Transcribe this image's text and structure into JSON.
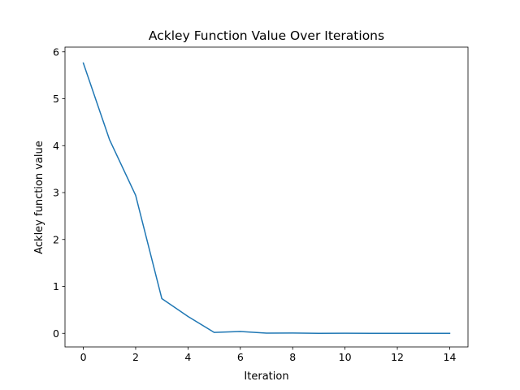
{
  "chart_data": {
    "type": "line",
    "title": "Ackley Function Value Over Iterations",
    "xlabel": "Iteration",
    "ylabel": "Ackley function value",
    "xlim": [
      -0.7,
      14.7
    ],
    "ylim": [
      -0.29,
      6.1
    ],
    "x_ticks": [
      0,
      2,
      4,
      6,
      8,
      10,
      12,
      14
    ],
    "y_ticks": [
      0,
      1,
      2,
      3,
      4,
      5,
      6
    ],
    "grid": false,
    "legend": "none",
    "series": [
      {
        "color": "#1f77b4",
        "x": [
          0,
          1,
          2,
          3,
          4,
          5,
          6,
          7,
          8,
          9,
          10,
          11,
          12,
          13,
          14
        ],
        "values": [
          5.76,
          4.13,
          2.94,
          0.74,
          0.36,
          0.02,
          0.04,
          0.005,
          0.006,
          0.0,
          0.003,
          0.001,
          0.0,
          0.0,
          0.0
        ]
      }
    ]
  }
}
